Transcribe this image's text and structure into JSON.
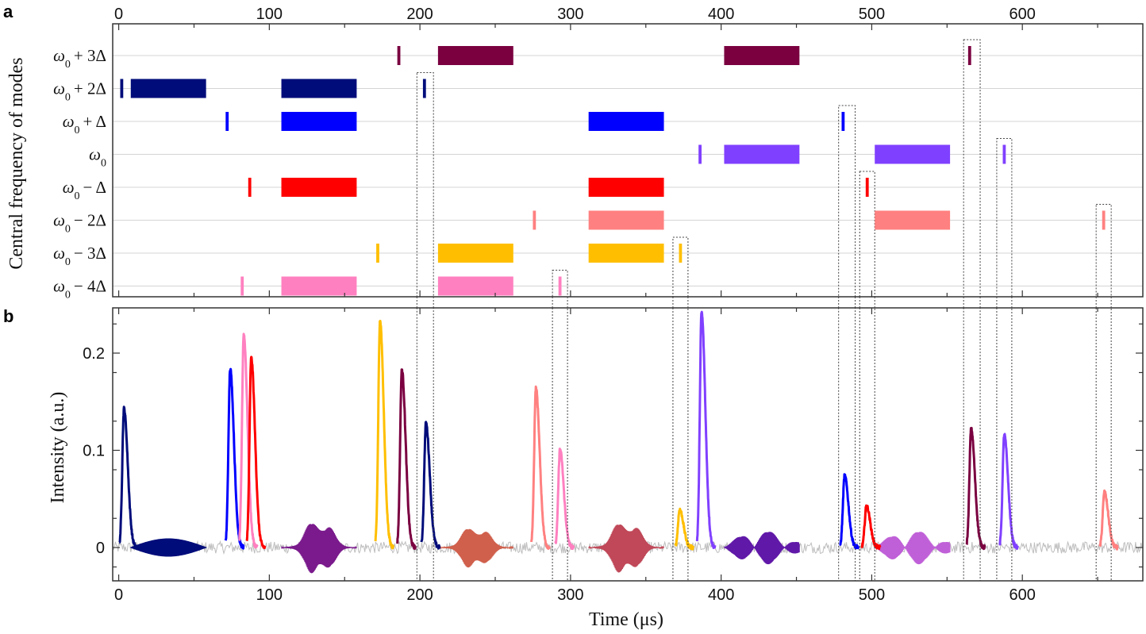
{
  "panel_a_letter": "a",
  "panel_b_letter": "b",
  "chart_data": [
    {
      "type": "bar",
      "subtype": "time-frequency occupancy",
      "title": "",
      "xlabel": "",
      "ylabel": "Central frequency of modes",
      "xlim": [
        -4,
        680
      ],
      "x_ticks": [
        "0",
        "100",
        "200",
        "300",
        "400",
        "500",
        "600"
      ],
      "modes": [
        {
          "label": "ω0 + 3Δ",
          "sym": "ω",
          "sub": "0",
          "rest": "+ 3Δ",
          "color": "#7a0040",
          "bars": [
            [
              185,
              187
            ],
            [
              212,
              262
            ],
            [
              402,
              452
            ],
            [
              564,
              566
            ]
          ]
        },
        {
          "label": "ω0 + 2Δ",
          "sym": "ω",
          "sub": "0",
          "rest": "+ 2Δ",
          "color": "#000c7a",
          "bars": [
            [
              1,
              3
            ],
            [
              8,
              58
            ],
            [
              108,
              158
            ],
            [
              202,
              204
            ]
          ]
        },
        {
          "label": "ω0 + Δ",
          "sym": "ω",
          "sub": "0",
          "rest": "+ Δ",
          "color": "#0000ff",
          "bars": [
            [
              71,
              73
            ],
            [
              108,
              158
            ],
            [
              312,
              362
            ],
            [
              480,
              482
            ]
          ]
        },
        {
          "label": "ω0",
          "sym": "ω",
          "sub": "0",
          "rest": "",
          "color": "#8040ff",
          "bars": [
            [
              385,
              387
            ],
            [
              402,
              452
            ],
            [
              502,
              552
            ],
            [
              587,
              589
            ]
          ]
        },
        {
          "label": "ω0 − Δ",
          "sym": "ω",
          "sub": "0",
          "rest": "− Δ",
          "color": "#ff0000",
          "bars": [
            [
              86,
              88
            ],
            [
              108,
              158
            ],
            [
              312,
              362
            ],
            [
              496,
              498
            ]
          ]
        },
        {
          "label": "ω0 − 2Δ",
          "sym": "ω",
          "sub": "0",
          "rest": "− 2Δ",
          "color": "#ff8080",
          "bars": [
            [
              275,
              277
            ],
            [
              312,
              362
            ],
            [
              502,
              552
            ],
            [
              653,
              655
            ]
          ]
        },
        {
          "label": "ω0 − 3Δ",
          "sym": "ω",
          "sub": "0",
          "rest": "− 3Δ",
          "color": "#ffbf00",
          "bars": [
            [
              171,
              173
            ],
            [
              212,
              262
            ],
            [
              312,
              362
            ],
            [
              372,
              374
            ]
          ]
        },
        {
          "label": "ω0 − 4Δ",
          "sym": "ω",
          "sub": "0",
          "rest": "− 4Δ",
          "color": "#ff80c0",
          "bars": [
            [
              81,
              83
            ],
            [
              108,
              158
            ],
            [
              212,
              262
            ],
            [
              292,
              294
            ]
          ]
        }
      ]
    },
    {
      "type": "line",
      "title": "",
      "xlabel": "Time (μs)",
      "ylabel": "Intensity (a.u.)",
      "xlim": [
        -4,
        680
      ],
      "ylim": [
        -0.03,
        0.245
      ],
      "x_ticks": [
        "0",
        "100",
        "200",
        "300",
        "400",
        "500",
        "600"
      ],
      "y_ticks": [
        {
          "value": 0,
          "label": "0"
        },
        {
          "value": 0.1,
          "label": "0.1"
        },
        {
          "value": 0.2,
          "label": "0.2"
        }
      ],
      "noise_color": "#bdbdbd",
      "pulses": [
        {
          "t": 3.5,
          "peak": 0.143,
          "color": "#000c7a"
        },
        {
          "t": 74,
          "peak": 0.184,
          "color": "#0000ff"
        },
        {
          "t": 83,
          "peak": 0.219,
          "color": "#ff80c0"
        },
        {
          "t": 88,
          "peak": 0.195,
          "color": "#ff0000"
        },
        {
          "t": 173.5,
          "peak": 0.233,
          "color": "#ffbf00"
        },
        {
          "t": 188,
          "peak": 0.183,
          "color": "#7a0040"
        },
        {
          "t": 204,
          "peak": 0.128,
          "color": "#000c7a"
        },
        {
          "t": 277,
          "peak": 0.164,
          "color": "#ff8080"
        },
        {
          "t": 293,
          "peak": 0.101,
          "color": "#ff80c0"
        },
        {
          "t": 372.5,
          "peak": 0.039,
          "color": "#ffbf00"
        },
        {
          "t": 387,
          "peak": 0.242,
          "color": "#8040ff"
        },
        {
          "t": 482,
          "peak": 0.074,
          "color": "#0000ff"
        },
        {
          "t": 496.5,
          "peak": 0.043,
          "color": "#ff0000"
        },
        {
          "t": 566,
          "peak": 0.122,
          "color": "#7a0040"
        },
        {
          "t": 588,
          "peak": 0.116,
          "color": "#8040ff"
        },
        {
          "t": 654.5,
          "peak": 0.057,
          "color": "#ff8080"
        }
      ],
      "bursts": [
        {
          "start": 8,
          "end": 58,
          "amp": 0.009,
          "color": "#000c7a",
          "kind": "smooth"
        },
        {
          "start": 108,
          "end": 158,
          "amp": 0.036,
          "color": "#7a1a8c",
          "kind": "dense"
        },
        {
          "start": 212,
          "end": 262,
          "amp": 0.028,
          "color": "#d0604c",
          "kind": "dense"
        },
        {
          "start": 312,
          "end": 362,
          "amp": 0.035,
          "color": "#c04858",
          "kind": "dense"
        },
        {
          "start": 402,
          "end": 452,
          "amp": 0.018,
          "color": "#6018a8",
          "kind": "beat"
        },
        {
          "start": 502,
          "end": 552,
          "amp": 0.018,
          "color": "#c060d8",
          "kind": "beat"
        }
      ],
      "windows": [
        {
          "start": 198,
          "end": 209,
          "mode_index": 1
        },
        {
          "start": 288,
          "end": 298,
          "mode_index": 7
        },
        {
          "start": 368,
          "end": 378,
          "mode_index": 6
        },
        {
          "start": 478,
          "end": 489,
          "mode_index": 2
        },
        {
          "start": 492,
          "end": 502,
          "mode_index": 4
        },
        {
          "start": 561,
          "end": 572,
          "mode_index": 0
        },
        {
          "start": 583,
          "end": 593,
          "mode_index": 3
        },
        {
          "start": 649,
          "end": 659,
          "mode_index": 5
        }
      ]
    }
  ]
}
